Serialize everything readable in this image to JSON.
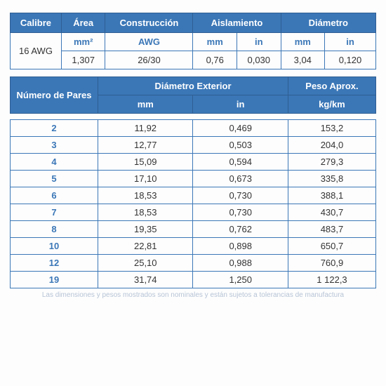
{
  "colors": {
    "header_bg": "#3b77b7",
    "header_border": "#2f5e92",
    "cell_border": "#3b77b7",
    "sub_text": "#3b77b7",
    "pair_text": "#3b77b7",
    "body_text": "#333333"
  },
  "table1": {
    "headers": [
      "Calibre",
      "Área",
      "Construcción",
      "Aislamiento",
      "Diámetro"
    ],
    "sub_units": {
      "area": "mm²",
      "constr": "AWG",
      "ais_mm": "mm",
      "ais_in": "in",
      "dia_mm": "mm",
      "dia_in": "in"
    },
    "row": {
      "calibre": "16 AWG",
      "area": "1,307",
      "constr": "26/30",
      "ais_mm": "0,76",
      "ais_in": "0,030",
      "dia_mm": "3,04",
      "dia_in": "0,120"
    }
  },
  "table2": {
    "headers": {
      "pares": "Número de Pares",
      "diam_ext": "Diámetro Exterior",
      "peso": "Peso Aprox.",
      "mm": "mm",
      "in": "in",
      "kgkm": "kg/km"
    }
  },
  "table3": {
    "rows": [
      {
        "pares": "2",
        "mm": "11,92",
        "in": "0,469",
        "peso": "153,2"
      },
      {
        "pares": "3",
        "mm": "12,77",
        "in": "0,503",
        "peso": "204,0"
      },
      {
        "pares": "4",
        "mm": "15,09",
        "in": "0,594",
        "peso": "279,3"
      },
      {
        "pares": "5",
        "mm": "17,10",
        "in": "0,673",
        "peso": "335,8"
      },
      {
        "pares": "6",
        "mm": "18,53",
        "in": "0,730",
        "peso": "388,1"
      },
      {
        "pares": "7",
        "mm": "18,53",
        "in": "0,730",
        "peso": "430,7"
      },
      {
        "pares": "8",
        "mm": "19,35",
        "in": "0,762",
        "peso": "483,7"
      },
      {
        "pares": "10",
        "mm": "22,81",
        "in": "0,898",
        "peso": "650,7"
      },
      {
        "pares": "12",
        "mm": "25,10",
        "in": "0,988",
        "peso": "760,9"
      },
      {
        "pares": "19",
        "mm": "31,74",
        "in": "1,250",
        "peso": "1 122,3"
      }
    ]
  },
  "footnote": "Las dimensiones y pesos mostrados son nominales y están sujetos a tolerancias de manufactura",
  "layout": {
    "col_widths_t1": [
      "14%",
      "12%",
      "24%",
      "12%",
      "12%",
      "12%",
      "14%"
    ],
    "col_widths_t23": [
      "24%",
      "26%",
      "26%",
      "24%"
    ]
  }
}
